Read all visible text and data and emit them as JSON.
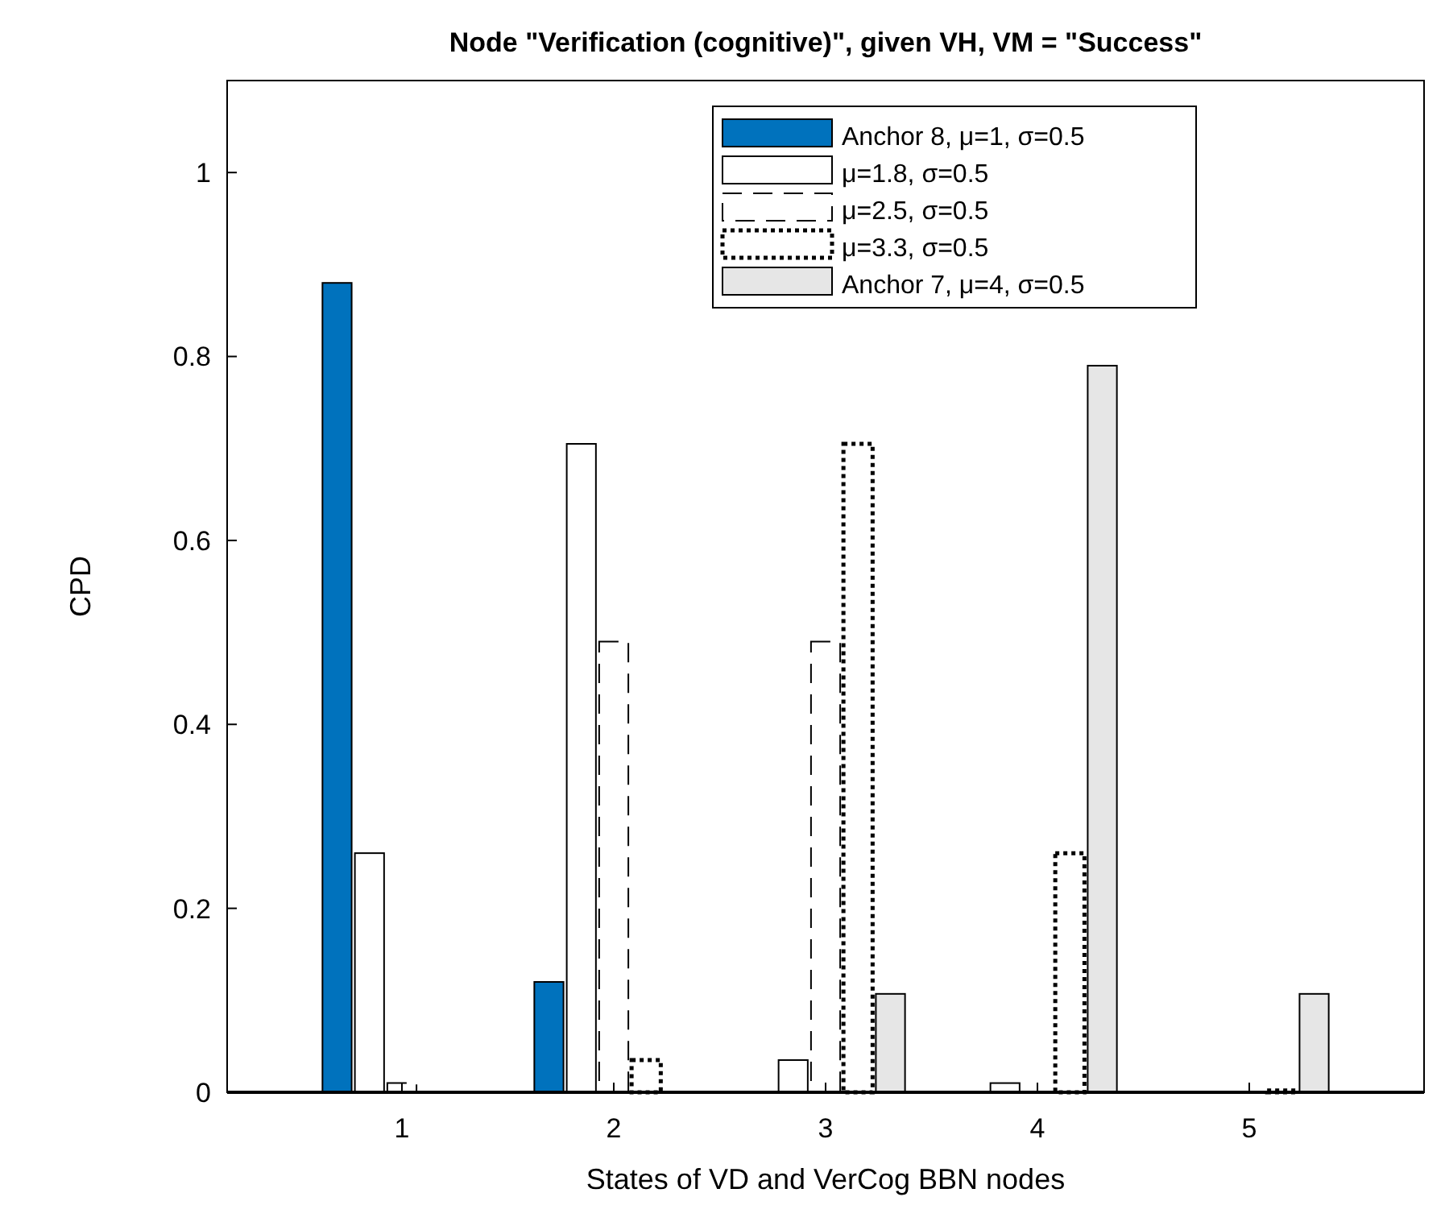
{
  "chart_data": {
    "type": "bar",
    "title": "Node \"Verification (cognitive)\", given VH, VM = \"Success\"",
    "xlabel": "States of VD and VerCog BBN nodes",
    "ylabel": "CPD",
    "categories": [
      "1",
      "2",
      "3",
      "4",
      "5"
    ],
    "series": [
      {
        "name": "Anchor 8, μ=1, σ=0.5",
        "color": "#0072bd",
        "line_style": "solid",
        "values": [
          0.88,
          0.12,
          0,
          0,
          0
        ]
      },
      {
        "name": "μ=1.8, σ=0.5",
        "color": "#ffffff",
        "line_style": "solid",
        "values": [
          0.26,
          0.705,
          0.035,
          0.01,
          0
        ]
      },
      {
        "name": "μ=2.5, σ=0.5",
        "color": "#ffffff",
        "line_style": "dashed",
        "values": [
          0.01,
          0.49,
          0.49,
          null,
          0
        ]
      },
      {
        "name": "μ=3.3, σ=0.5",
        "color": "#ffffff",
        "line_style": "dotted",
        "values": [
          null,
          0.035,
          0.705,
          0.26,
          0.002
        ]
      },
      {
        "name": "Anchor 7, μ=4, σ=0.5",
        "color": "#e6e6e6",
        "line_style": "solid",
        "values": [
          0,
          0,
          0.107,
          0.79,
          0.107
        ]
      }
    ],
    "ylim": [
      0,
      1.1
    ],
    "yticks": [
      0,
      0.2,
      0.4,
      0.6,
      0.8,
      1
    ],
    "grid": false,
    "legend": "top"
  }
}
